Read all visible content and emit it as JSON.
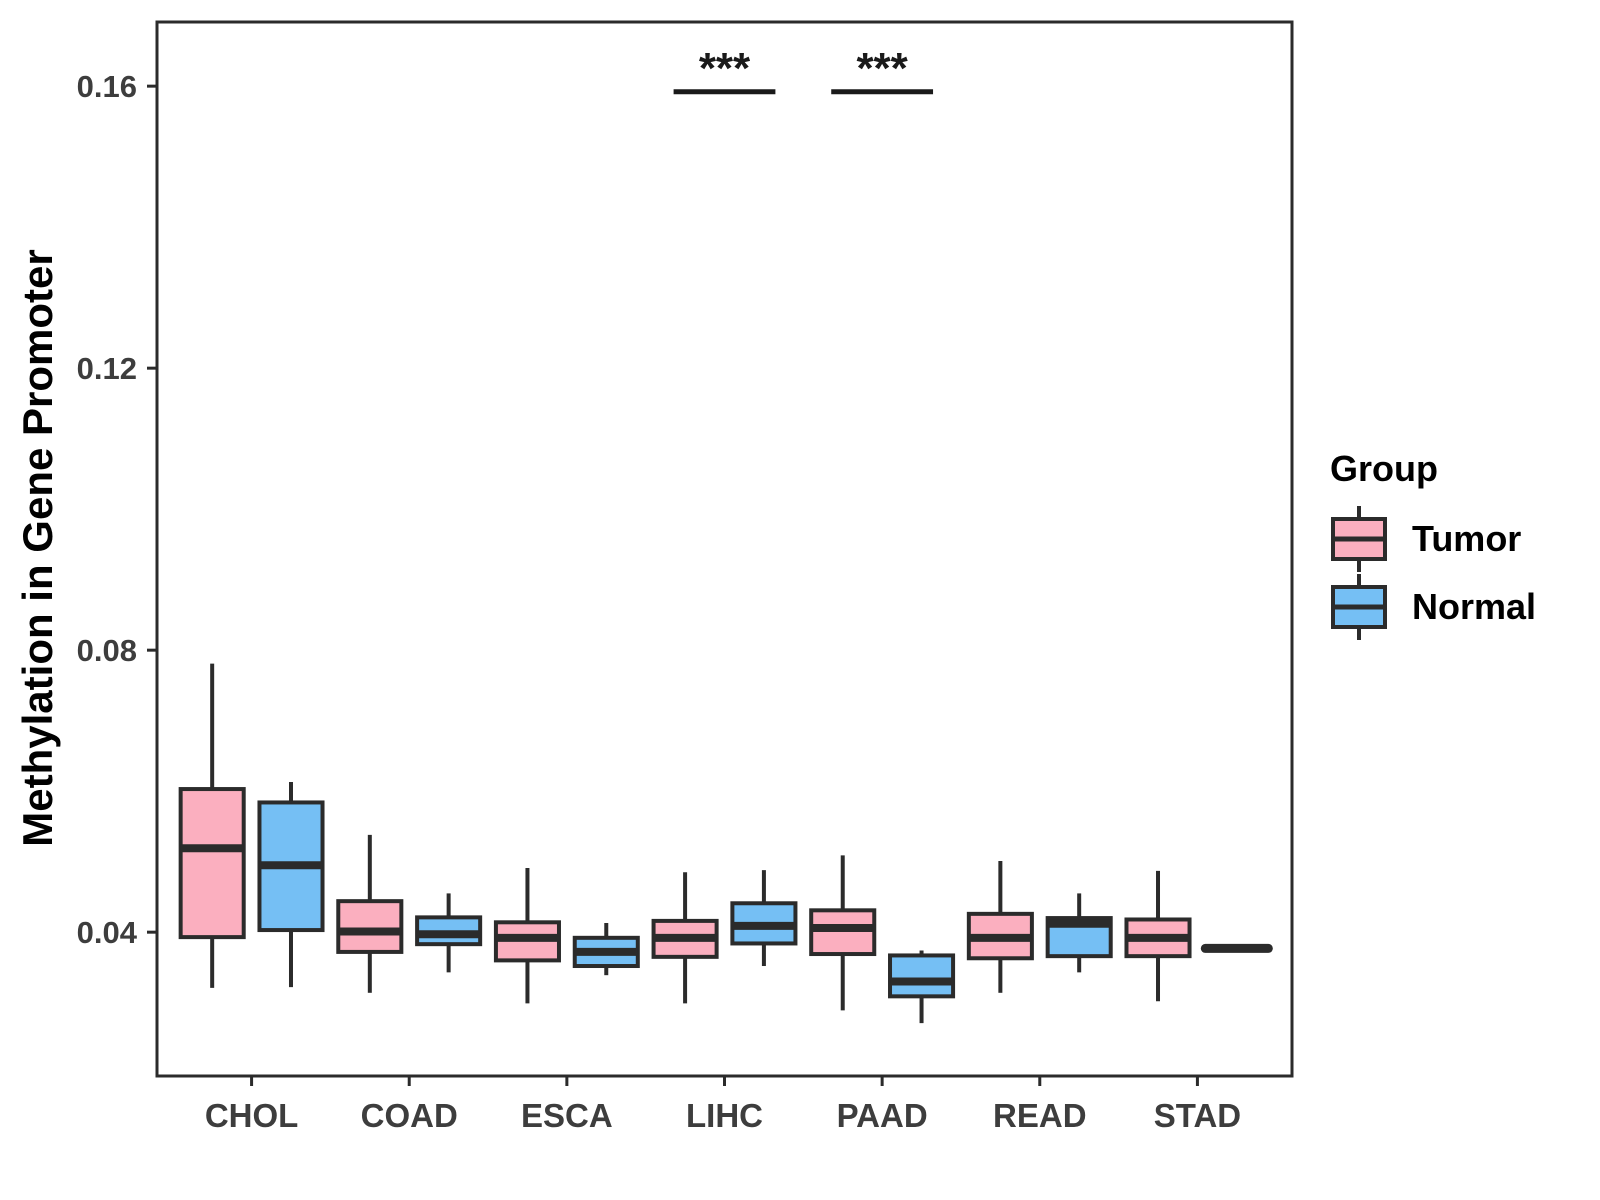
{
  "chart_data": {
    "type": "boxplot",
    "title": "",
    "xlabel": "",
    "ylabel": "Methylation in Gene Promoter",
    "categories": [
      "CHOL",
      "COAD",
      "ESCA",
      "LIHC",
      "PAAD",
      "READ",
      "STAD"
    ],
    "group_names": [
      "Tumor",
      "Normal"
    ],
    "colors": {
      "Tumor": "#FBAFBF",
      "Normal": "#75BFF4",
      "stroke": "#2B2B2B",
      "axis_text": "#3D3D3D",
      "panel_border": "#2B2B2B"
    },
    "ylim": [
      0.0196,
      0.1691
    ],
    "yticks": [
      {
        "value": 0.04,
        "label": "0.04"
      },
      {
        "value": 0.08,
        "label": "0.08"
      },
      {
        "value": 0.12,
        "label": "0.12"
      },
      {
        "value": 0.16,
        "label": "0.16"
      }
    ],
    "grid": "off",
    "legend": {
      "title": "Group",
      "position": "right",
      "items": [
        {
          "label": "Tumor",
          "color": "#FBAFBF"
        },
        {
          "label": "Normal",
          "color": "#75BFF4"
        }
      ]
    },
    "series": [
      {
        "category": "CHOL",
        "group": "Tumor",
        "whisker_low": 0.0321,
        "q1": 0.0393,
        "median": 0.0519,
        "q3": 0.0603,
        "whisker_high": 0.0781
      },
      {
        "category": "CHOL",
        "group": "Normal",
        "whisker_low": 0.0322,
        "q1": 0.0403,
        "median": 0.0495,
        "q3": 0.0584,
        "whisker_high": 0.0613
      },
      {
        "category": "COAD",
        "group": "Tumor",
        "whisker_low": 0.0314,
        "q1": 0.0372,
        "median": 0.0401,
        "q3": 0.0444,
        "whisker_high": 0.0538
      },
      {
        "category": "COAD",
        "group": "Normal",
        "whisker_low": 0.0343,
        "q1": 0.0383,
        "median": 0.0397,
        "q3": 0.0421,
        "whisker_high": 0.0455
      },
      {
        "category": "ESCA",
        "group": "Tumor",
        "whisker_low": 0.0299,
        "q1": 0.036,
        "median": 0.0392,
        "q3": 0.0414,
        "whisker_high": 0.0491
      },
      {
        "category": "ESCA",
        "group": "Normal",
        "whisker_low": 0.0339,
        "q1": 0.0352,
        "median": 0.0372,
        "q3": 0.0392,
        "whisker_high": 0.0413
      },
      {
        "category": "LIHC",
        "group": "Tumor",
        "whisker_low": 0.0299,
        "q1": 0.0365,
        "median": 0.0392,
        "q3": 0.0416,
        "whisker_high": 0.0485
      },
      {
        "category": "LIHC",
        "group": "Normal",
        "whisker_low": 0.0352,
        "q1": 0.0384,
        "median": 0.0409,
        "q3": 0.0441,
        "whisker_high": 0.0488
      },
      {
        "category": "PAAD",
        "group": "Tumor",
        "whisker_low": 0.0289,
        "q1": 0.0369,
        "median": 0.0406,
        "q3": 0.0431,
        "whisker_high": 0.0509
      },
      {
        "category": "PAAD",
        "group": "Normal",
        "whisker_low": 0.0271,
        "q1": 0.0309,
        "median": 0.033,
        "q3": 0.0367,
        "whisker_high": 0.0374
      },
      {
        "category": "READ",
        "group": "Tumor",
        "whisker_low": 0.0314,
        "q1": 0.0363,
        "median": 0.0392,
        "q3": 0.0426,
        "whisker_high": 0.0501
      },
      {
        "category": "READ",
        "group": "Normal",
        "whisker_low": 0.0343,
        "q1": 0.0366,
        "median": 0.0412,
        "q3": 0.042,
        "whisker_high": 0.0455
      },
      {
        "category": "STAD",
        "group": "Tumor",
        "whisker_low": 0.0302,
        "q1": 0.0366,
        "median": 0.0392,
        "q3": 0.0418,
        "whisker_high": 0.0487
      },
      {
        "category": "STAD",
        "group": "Normal",
        "flat": true,
        "median": 0.0377
      }
    ],
    "annotations": [
      {
        "label": "***",
        "category": "LIHC",
        "bar_value": 0.1592
      },
      {
        "label": "***",
        "category": "PAAD",
        "bar_value": 0.1592
      }
    ]
  }
}
